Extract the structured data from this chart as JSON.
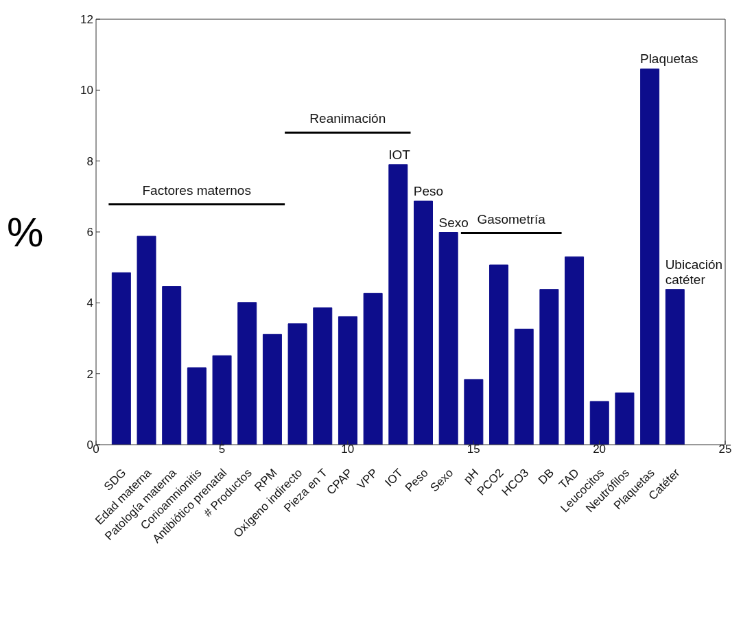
{
  "chart_data": {
    "type": "bar",
    "ylabel": "%",
    "categories": [
      "SDG",
      "Edad materna",
      "Patología materna",
      "Corioamnionitis",
      "Antibiótico prenatal",
      "# Productos",
      "RPM",
      "Oxígeno indirecto",
      "Pieza en T",
      "CPAP",
      "VPP",
      "IOT",
      "Peso",
      "Sexo",
      "pH",
      "PCO2",
      "HCO3",
      "DB",
      "TAD",
      "Leucocitos",
      "Neutrófilos",
      "Plaquetas",
      "Catéter"
    ],
    "values": [
      4.85,
      5.88,
      4.46,
      2.17,
      2.51,
      4.01,
      3.11,
      3.41,
      3.86,
      3.61,
      4.27,
      7.9,
      6.87,
      5.99,
      1.84,
      5.07,
      3.26,
      4.38,
      5.3,
      1.22,
      1.46,
      10.6,
      4.38
    ],
    "color": "#0d0d8c",
    "x2lim": [
      0,
      25
    ],
    "x2ticks": [
      0,
      5,
      10,
      15,
      20,
      25
    ],
    "ylim": [
      0,
      12
    ],
    "yticks": [
      0,
      2,
      4,
      6,
      8,
      10,
      12
    ],
    "annotations": [
      "Factores maternos",
      "Reanimación",
      "Gasometría",
      {
        "text": "IOT",
        "x": "IOT",
        "y": 7.9
      },
      {
        "text": "Peso",
        "x": "Peso",
        "y": 6.87
      },
      {
        "text": "Sexo",
        "x": "Sexo",
        "y": 5.99
      },
      {
        "text": "Plaquetas",
        "x": "Plaquetas",
        "y": 10.6
      },
      {
        "text": "Ubicación catéter",
        "x": "Catéter",
        "y": 4.38
      }
    ]
  }
}
